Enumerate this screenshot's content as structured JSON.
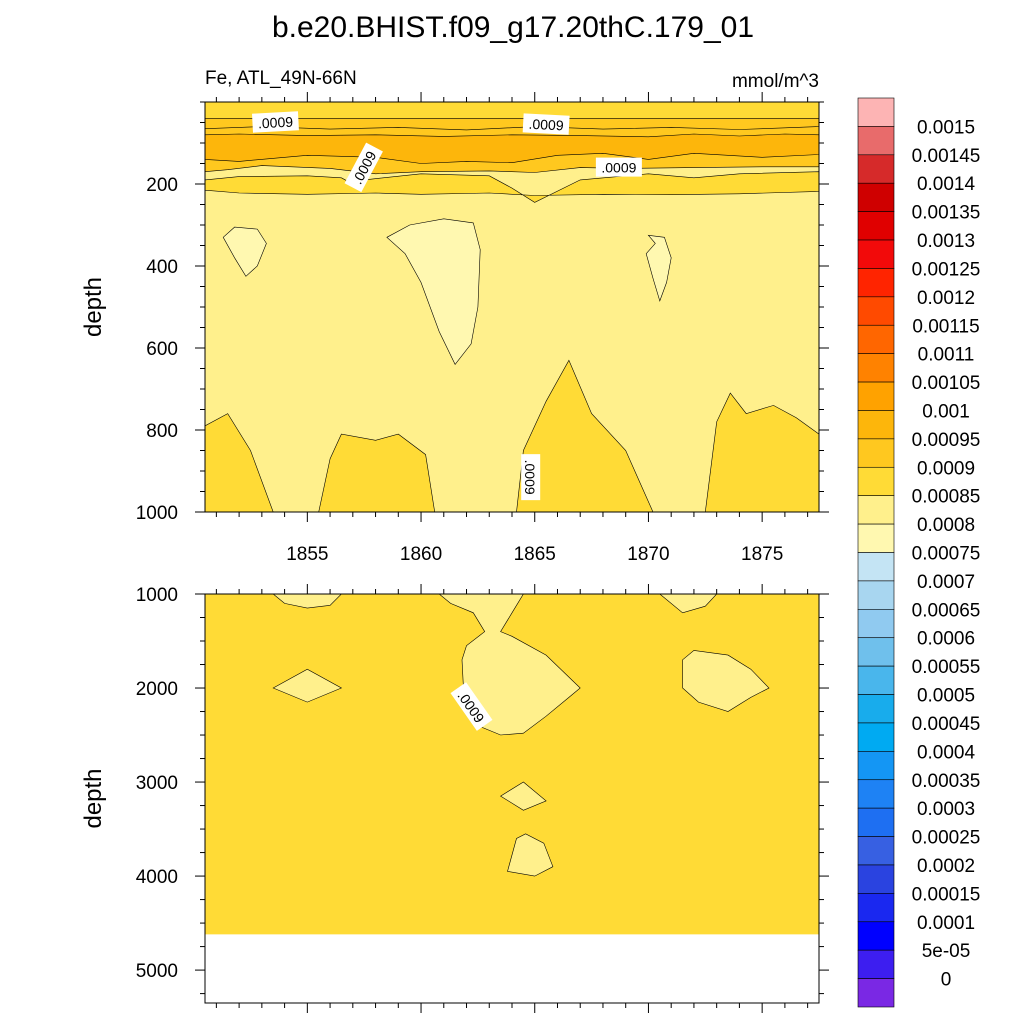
{
  "title": "b.e20.BHIST.f09_g17.20thC.179_01",
  "chart_data": [
    {
      "type": "heatmap",
      "panel": "upper",
      "title_left": "Fe, ATL_49N-66N",
      "title_right": "mmol/m^3",
      "ylabel": "depth",
      "ylim": [
        1000,
        0
      ],
      "xlim": [
        1850.5,
        1877.5
      ],
      "x_ticks": [
        1855,
        1860,
        1865,
        1870,
        1875
      ],
      "y_ticks": [
        200,
        400,
        600,
        800,
        1000
      ],
      "x_tick_labels": [
        "1855",
        "1860",
        "1865",
        "1870",
        "1875"
      ],
      "y_tick_labels": [
        "200",
        "400",
        "600",
        "800",
        "1000"
      ],
      "background_value": 0.00085,
      "contour_labels": [
        ".0009",
        ".0009",
        ".0009",
        ".0009",
        ".0009"
      ],
      "regions": [
        {
          "level": 0.0009,
          "points": [
            [
              1850.5,
              1000
            ],
            [
              1850.5,
              790
            ],
            [
              1851.5,
              760
            ],
            [
              1852.5,
              850
            ],
            [
              1853.5,
              1000
            ]
          ]
        },
        {
          "level": 0.0009,
          "points": [
            [
              1855.5,
              1000
            ],
            [
              1856,
              870
            ],
            [
              1856.5,
              810
            ],
            [
              1858,
              825
            ],
            [
              1859,
              810
            ],
            [
              1860.2,
              860
            ],
            [
              1860.6,
              1000
            ]
          ]
        },
        {
          "level": 0.0009,
          "points": [
            [
              1864.2,
              1000
            ],
            [
              1864.5,
              850
            ],
            [
              1865.5,
              730
            ],
            [
              1866.5,
              630
            ],
            [
              1867.5,
              760
            ],
            [
              1869,
              850
            ],
            [
              1870.2,
              1000
            ]
          ]
        },
        {
          "level": 0.0009,
          "points": [
            [
              1872.5,
              1000
            ],
            [
              1873,
              780
            ],
            [
              1873.6,
              710
            ],
            [
              1874.3,
              760
            ],
            [
              1875.5,
              740
            ],
            [
              1876.5,
              770
            ],
            [
              1877.5,
              810
            ],
            [
              1877.5,
              1000
            ]
          ]
        },
        {
          "level": 0.0008,
          "points": [
            [
              1851.3,
              330
            ],
            [
              1851.8,
              305
            ],
            [
              1852.8,
              310
            ],
            [
              1853.2,
              345
            ],
            [
              1852.8,
              400
            ],
            [
              1852.3,
              425
            ],
            [
              1851.8,
              380
            ]
          ]
        },
        {
          "level": 0.0008,
          "points": [
            [
              1858.5,
              330
            ],
            [
              1859.5,
              300
            ],
            [
              1861,
              285
            ],
            [
              1862.3,
              295
            ],
            [
              1862.6,
              360
            ],
            [
              1862.5,
              500
            ],
            [
              1862.2,
              590
            ],
            [
              1861.5,
              640
            ],
            [
              1860.8,
              560
            ],
            [
              1860,
              440
            ],
            [
              1859.3,
              370
            ]
          ]
        },
        {
          "level": 0.0008,
          "points": [
            [
              1870,
              325
            ],
            [
              1870.7,
              330
            ],
            [
              1871,
              380
            ],
            [
              1870.8,
              440
            ],
            [
              1870.5,
              485
            ],
            [
              1870.2,
              430
            ],
            [
              1869.9,
              370
            ],
            [
              1870.3,
              345
            ]
          ]
        },
        {
          "level": 0.0009,
          "points": [
            [
              1850.5,
              215
            ],
            [
              1852,
              222
            ],
            [
              1855,
              225
            ],
            [
              1858,
              222
            ],
            [
              1860,
              225
            ],
            [
              1863,
              222
            ],
            [
              1865,
              228
            ],
            [
              1868,
              225
            ],
            [
              1871,
              226
            ],
            [
              1874,
              224
            ],
            [
              1877.5,
              218
            ],
            [
              1877.5,
              170
            ],
            [
              1874,
              175
            ],
            [
              1872,
              185
            ],
            [
              1870,
              175
            ],
            [
              1867,
              190
            ],
            [
              1865,
              245
            ],
            [
              1864,
              210
            ],
            [
              1863,
              180
            ],
            [
              1860,
              175
            ],
            [
              1857.5,
              190
            ],
            [
              1857,
              200
            ],
            [
              1856.5,
              185
            ],
            [
              1855,
              180
            ],
            [
              1852,
              182
            ],
            [
              1850.5,
              190
            ]
          ]
        },
        {
          "level": 0.00095,
          "points": [
            [
              1850.5,
              170
            ],
            [
              1851.5,
              165
            ],
            [
              1853,
              155
            ],
            [
              1856,
              162
            ],
            [
              1858,
              175
            ],
            [
              1860,
              170
            ],
            [
              1863,
              168
            ],
            [
              1865,
              172
            ],
            [
              1867,
              160
            ],
            [
              1869,
              162
            ],
            [
              1872,
              160
            ],
            [
              1875,
              158
            ],
            [
              1877.5,
              158
            ],
            [
              1877.5,
              55
            ],
            [
              1850.5,
              55
            ]
          ]
        },
        {
          "level": 0.001,
          "points": [
            [
              1850.5,
              140
            ],
            [
              1852,
              145
            ],
            [
              1855,
              130
            ],
            [
              1858,
              135
            ],
            [
              1860,
              150
            ],
            [
              1862,
              145
            ],
            [
              1864,
              148
            ],
            [
              1866,
              130
            ],
            [
              1868,
              125
            ],
            [
              1870,
              140
            ],
            [
              1872,
              125
            ],
            [
              1875,
              135
            ],
            [
              1877.5,
              128
            ],
            [
              1877.5,
              80
            ],
            [
              1876,
              78
            ],
            [
              1874,
              83
            ],
            [
              1872,
              78
            ],
            [
              1870,
              85
            ],
            [
              1867,
              82
            ],
            [
              1864,
              80
            ],
            [
              1861,
              84
            ],
            [
              1858,
              80
            ],
            [
              1855,
              82
            ],
            [
              1852,
              78
            ],
            [
              1850.5,
              80
            ]
          ]
        },
        {
          "level": 0.00095,
          "points": [
            [
              1850.5,
              65
            ],
            [
              1853,
              60
            ],
            [
              1856,
              66
            ],
            [
              1859,
              62
            ],
            [
              1862,
              68
            ],
            [
              1865,
              60
            ],
            [
              1868,
              66
            ],
            [
              1871,
              62
            ],
            [
              1874,
              67
            ],
            [
              1877.5,
              60
            ],
            [
              1877.5,
              35
            ],
            [
              1850.5,
              35
            ]
          ]
        },
        {
          "level": 0.0009,
          "points": [
            [
              1850.5,
              40
            ],
            [
              1877.5,
              40
            ],
            [
              1877.5,
              0
            ],
            [
              1850.5,
              0
            ]
          ]
        }
      ]
    },
    {
      "type": "heatmap",
      "panel": "lower",
      "ylabel": "depth",
      "ylim": [
        5350,
        1000
      ],
      "xlim": [
        1850.5,
        1877.5
      ],
      "y_ticks": [
        1000,
        2000,
        3000,
        4000,
        5000
      ],
      "y_tick_labels": [
        "1000",
        "2000",
        "3000",
        "4000",
        "5000"
      ],
      "data_bottom": 4620,
      "background_value": 0.0009,
      "contour_labels": [
        ".0009"
      ],
      "regions": [
        {
          "level": 0.00085,
          "points": [
            [
              1853.5,
              1000
            ],
            [
              1854,
              1100
            ],
            [
              1855,
              1150
            ],
            [
              1856,
              1120
            ],
            [
              1856.5,
              1000
            ]
          ]
        },
        {
          "level": 0.00085,
          "points": [
            [
              1853.5,
              2000
            ],
            [
              1855,
              1800
            ],
            [
              1856.5,
              2000
            ],
            [
              1855,
              2150
            ]
          ]
        },
        {
          "level": 0.00085,
          "points": [
            [
              1860.8,
              1000
            ],
            [
              1861.3,
              1100
            ],
            [
              1862.3,
              1200
            ],
            [
              1862.8,
              1400
            ],
            [
              1862,
              1550
            ],
            [
              1861.8,
              1700
            ],
            [
              1861.9,
              2150
            ],
            [
              1862.5,
              2400
            ],
            [
              1863.5,
              2500
            ],
            [
              1864.5,
              2480
            ],
            [
              1865.5,
              2300
            ],
            [
              1866.5,
              2100
            ],
            [
              1867,
              2000
            ],
            [
              1865.5,
              1650
            ],
            [
              1864,
              1450
            ],
            [
              1863.5,
              1400
            ],
            [
              1864,
              1200
            ],
            [
              1864.5,
              1000
            ]
          ]
        },
        {
          "level": 0.00085,
          "points": [
            [
              1863.5,
              3150
            ],
            [
              1864.5,
              3000
            ],
            [
              1865.5,
              3200
            ],
            [
              1864.5,
              3300
            ]
          ]
        },
        {
          "level": 0.00085,
          "points": [
            [
              1863.8,
              3950
            ],
            [
              1864.2,
              3600
            ],
            [
              1864.6,
              3550
            ],
            [
              1865.4,
              3650
            ],
            [
              1865.8,
              3900
            ],
            [
              1865,
              4000
            ]
          ]
        },
        {
          "level": 0.00085,
          "points": [
            [
              1870.5,
              1000
            ],
            [
              1871.5,
              1200
            ],
            [
              1872.5,
              1130
            ],
            [
              1873,
              1000
            ]
          ]
        },
        {
          "level": 0.00085,
          "points": [
            [
              1871.5,
              1700
            ],
            [
              1872,
              1600
            ],
            [
              1873.5,
              1650
            ],
            [
              1874.5,
              1800
            ],
            [
              1875.3,
              2000
            ],
            [
              1874.5,
              2100
            ],
            [
              1873.5,
              2250
            ],
            [
              1872.2,
              2150
            ],
            [
              1871.5,
              2000
            ]
          ]
        }
      ]
    }
  ],
  "colorbar": {
    "levels": [
      "0.0015",
      "0.00145",
      "0.0014",
      "0.00135",
      "0.0013",
      "0.00125",
      "0.0012",
      "0.00115",
      "0.0011",
      "0.00105",
      "0.001",
      "0.00095",
      "0.0009",
      "0.00085",
      "0.0008",
      "0.00075",
      "0.0007",
      "0.00065",
      "0.0006",
      "0.00055",
      "0.0005",
      "0.00045",
      "0.0004",
      "0.00035",
      "0.0003",
      "0.00025",
      "0.0002",
      "0.00015",
      "0.0001",
      "5e-05",
      "0"
    ],
    "colors": [
      "#fdb4b4",
      "#e86b6b",
      "#d62a2a",
      "#cf0000",
      "#e00000",
      "#f20a0a",
      "#ff2400",
      "#ff4a00",
      "#ff6600",
      "#ff8200",
      "#ffa200",
      "#fdb60b",
      "#ffc81f",
      "#ffdb36",
      "#fff08c",
      "#fff8b0",
      "#c4e4f4",
      "#a8d6f0",
      "#90caf0",
      "#6fc0ec",
      "#49b6ec",
      "#18acec",
      "#00aaf2",
      "#1496f4",
      "#1e82f4",
      "#1e6ff2",
      "#3760e2",
      "#2a43e0",
      "#1a28f0",
      "#0000ff",
      "#3d1ef0",
      "#7a28e4"
    ]
  }
}
